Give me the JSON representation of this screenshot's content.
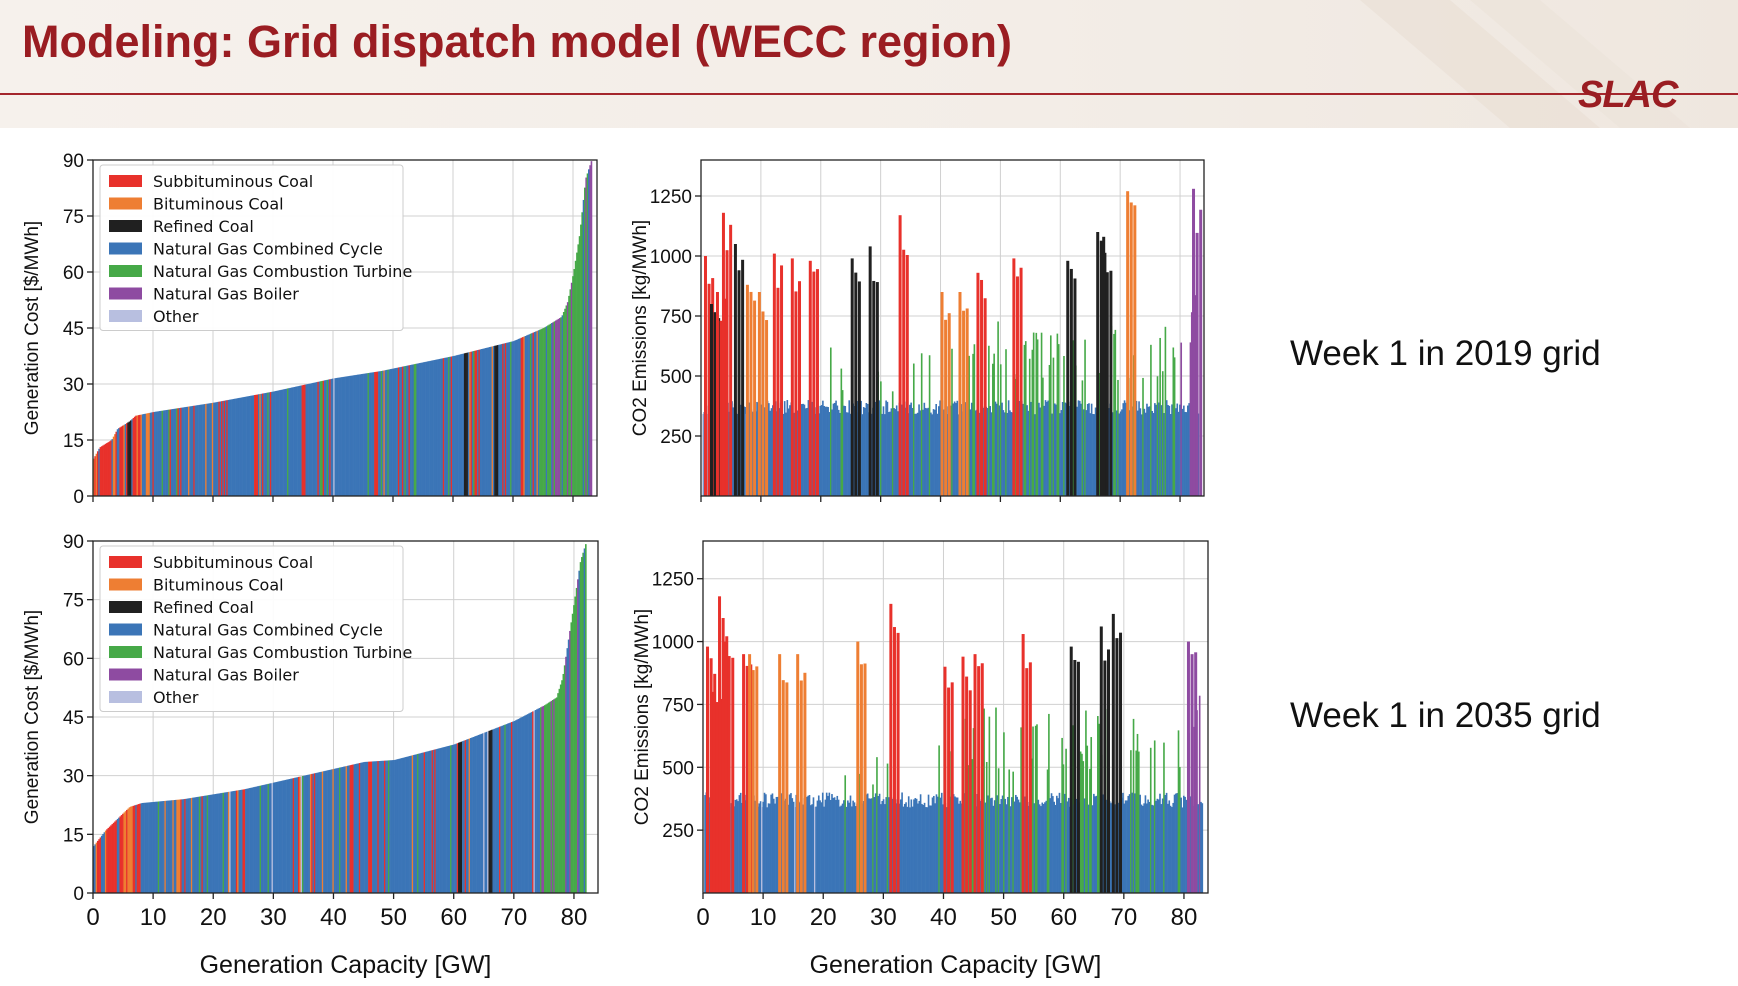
{
  "slide": {
    "title": "Modeling: Grid dispatch model (WECC region)",
    "logo_text": "SLAC",
    "accent_color": "#9a1d22"
  },
  "labels": {
    "week_2019": "Week 1 in 2019 grid",
    "week_2035": "Week 1 in 2035 grid"
  },
  "colors": {
    "Subbituminous Coal": "#e8312b",
    "Bituminous Coal": "#ee7e33",
    "Refined Coal": "#202020",
    "Natural Gas Combined Cycle": "#3b75b7",
    "Natural Gas Combustion Turbine": "#46a948",
    "Natural Gas Boiler": "#8e4ba1",
    "Other": "#b8bfe0"
  },
  "chart_data": [
    {
      "id": "cost-2019",
      "type": "bar",
      "subtype": "supply-curve",
      "title": "",
      "xlabel": "",
      "ylabel": "Generation Cost [$/MWh]",
      "xlim": [
        0,
        84
      ],
      "ylim": [
        0,
        90
      ],
      "yticks": [
        0,
        15,
        30,
        45,
        60,
        75,
        90
      ],
      "xticks": [
        0,
        10,
        20,
        30,
        40,
        50,
        60,
        70,
        80
      ],
      "show_xtick_labels": false,
      "grid": true,
      "legend": {
        "placement": "top-left",
        "entries": [
          "Subbituminous Coal",
          "Bituminous Coal",
          "Refined Coal",
          "Natural Gas Combined Cycle",
          "Natural Gas Combustion Turbine",
          "Natural Gas Boiler",
          "Other"
        ]
      },
      "curve_points": [
        [
          0,
          10
        ],
        [
          1,
          13
        ],
        [
          3,
          15
        ],
        [
          4,
          18
        ],
        [
          6,
          20
        ],
        [
          7,
          21.5
        ],
        [
          10,
          22.5
        ],
        [
          20,
          25
        ],
        [
          30,
          28
        ],
        [
          40,
          31.5
        ],
        [
          48,
          33.5
        ],
        [
          60,
          37.5
        ],
        [
          70,
          41.5
        ],
        [
          75,
          45
        ],
        [
          78,
          48
        ],
        [
          79,
          52
        ],
        [
          80,
          60
        ],
        [
          81,
          70
        ],
        [
          82,
          85
        ],
        [
          83,
          90
        ]
      ],
      "notable_units": [
        {
          "x": 2.5,
          "fuel": "Subbituminous Coal"
        },
        {
          "x": 6,
          "fuel": "Refined Coal"
        },
        {
          "x": 9,
          "fuel": "Bituminous Coal"
        },
        {
          "x": 27,
          "fuel": "Subbituminous Coal"
        },
        {
          "x": 35,
          "fuel": "Subbituminous Coal"
        },
        {
          "x": 47,
          "fuel": "Subbituminous Coal"
        },
        {
          "x": 62,
          "fuel": "Refined Coal"
        },
        {
          "x": 67,
          "fuel": "Refined Coal"
        }
      ]
    },
    {
      "id": "co2-2019",
      "type": "bar",
      "title": "",
      "xlabel": "",
      "ylabel": "CO2 Emissions [kg/MWh]",
      "xlim": [
        0,
        84
      ],
      "ylim": [
        0,
        1400
      ],
      "yticks": [
        250,
        500,
        750,
        1000,
        1250
      ],
      "xticks": [
        0,
        10,
        20,
        30,
        40,
        50,
        60,
        70,
        80
      ],
      "show_xtick_labels": false,
      "grid": true,
      "baseline_ngcc": 380,
      "notable_units": [
        {
          "x": 0.5,
          "value": 1000,
          "fuel": "Subbituminous Coal"
        },
        {
          "x": 1.5,
          "value": 800,
          "fuel": "Refined Coal"
        },
        {
          "x": 2.5,
          "value": 850,
          "fuel": "Subbituminous Coal"
        },
        {
          "x": 3.5,
          "value": 1180,
          "fuel": "Subbituminous Coal"
        },
        {
          "x": 5.5,
          "value": 1050,
          "fuel": "Refined Coal"
        },
        {
          "x": 7.5,
          "value": 880,
          "fuel": "Bituminous Coal"
        },
        {
          "x": 9.5,
          "value": 850,
          "fuel": "Bituminous Coal"
        },
        {
          "x": 12,
          "value": 1010,
          "fuel": "Subbituminous Coal"
        },
        {
          "x": 15,
          "value": 990,
          "fuel": "Subbituminous Coal"
        },
        {
          "x": 18,
          "value": 980,
          "fuel": "Subbituminous Coal"
        },
        {
          "x": 25,
          "value": 990,
          "fuel": "Refined Coal"
        },
        {
          "x": 28,
          "value": 1040,
          "fuel": "Refined Coal"
        },
        {
          "x": 33,
          "value": 1170,
          "fuel": "Subbituminous Coal"
        },
        {
          "x": 40,
          "value": 850,
          "fuel": "Bituminous Coal"
        },
        {
          "x": 43,
          "value": 850,
          "fuel": "Bituminous Coal"
        },
        {
          "x": 46,
          "value": 930,
          "fuel": "Subbituminous Coal"
        },
        {
          "x": 52,
          "value": 990,
          "fuel": "Subbituminous Coal"
        },
        {
          "x": 61,
          "value": 980,
          "fuel": "Refined Coal"
        },
        {
          "x": 66,
          "value": 1100,
          "fuel": "Refined Coal"
        },
        {
          "x": 67,
          "value": 1080,
          "fuel": "Refined Coal"
        },
        {
          "x": 71,
          "value": 1270,
          "fuel": "Bituminous Coal"
        },
        {
          "x": 82,
          "value": 1280,
          "fuel": "Natural Gas Boiler"
        }
      ]
    },
    {
      "id": "cost-2035",
      "type": "bar",
      "subtype": "supply-curve",
      "title": "",
      "xlabel": "Generation Capacity [GW]",
      "ylabel": "Generation Cost [$/MWh]",
      "xlim": [
        0,
        84
      ],
      "ylim": [
        0,
        90
      ],
      "yticks": [
        0,
        15,
        30,
        45,
        60,
        75,
        90
      ],
      "xticks": [
        0,
        10,
        20,
        30,
        40,
        50,
        60,
        70,
        80
      ],
      "show_xtick_labels": true,
      "grid": true,
      "legend": {
        "placement": "top-left",
        "entries": [
          "Subbituminous Coal",
          "Bituminous Coal",
          "Refined Coal",
          "Natural Gas Combined Cycle",
          "Natural Gas Combustion Turbine",
          "Natural Gas Boiler",
          "Other"
        ]
      },
      "curve_points": [
        [
          0,
          12
        ],
        [
          1,
          14
        ],
        [
          2,
          16
        ],
        [
          4,
          19
        ],
        [
          6,
          22
        ],
        [
          8,
          23
        ],
        [
          15,
          24
        ],
        [
          25,
          26.5
        ],
        [
          35,
          30
        ],
        [
          45,
          33.5
        ],
        [
          50,
          34
        ],
        [
          60,
          38
        ],
        [
          65,
          41
        ],
        [
          70,
          44
        ],
        [
          75,
          48
        ],
        [
          77,
          50
        ],
        [
          78,
          55
        ],
        [
          79,
          65
        ],
        [
          80,
          75
        ],
        [
          81,
          85
        ],
        [
          82,
          90
        ]
      ],
      "notable_units": [
        {
          "x": 2.5,
          "fuel": "Subbituminous Coal"
        },
        {
          "x": 6,
          "fuel": "Bituminous Coal"
        },
        {
          "x": 14,
          "fuel": "Bituminous Coal"
        },
        {
          "x": 43,
          "fuel": "Subbituminous Coal"
        },
        {
          "x": 46,
          "fuel": "Subbituminous Coal"
        },
        {
          "x": 61,
          "fuel": "Refined Coal"
        },
        {
          "x": 66,
          "fuel": "Refined Coal"
        }
      ]
    },
    {
      "id": "co2-2035",
      "type": "bar",
      "title": "",
      "xlabel": "Generation Capacity [GW]",
      "ylabel": "CO2 Emissions [kg/MWh]",
      "xlim": [
        0,
        84
      ],
      "ylim": [
        0,
        1400
      ],
      "yticks": [
        250,
        500,
        750,
        1000,
        1250
      ],
      "xticks": [
        0,
        10,
        20,
        30,
        40,
        50,
        60,
        70,
        80
      ],
      "show_xtick_labels": true,
      "grid": true,
      "baseline_ngcc": 380,
      "notable_units": [
        {
          "x": 0.5,
          "value": 980,
          "fuel": "Subbituminous Coal"
        },
        {
          "x": 1.5,
          "value": 800,
          "fuel": "Subbituminous Coal"
        },
        {
          "x": 2.5,
          "value": 1180,
          "fuel": "Subbituminous Coal"
        },
        {
          "x": 3.5,
          "value": 1000,
          "fuel": "Subbituminous Coal"
        },
        {
          "x": 6.5,
          "value": 950,
          "fuel": "Subbituminous Coal"
        },
        {
          "x": 7.5,
          "value": 950,
          "fuel": "Bituminous Coal"
        },
        {
          "x": 12.5,
          "value": 950,
          "fuel": "Bituminous Coal"
        },
        {
          "x": 15.5,
          "value": 950,
          "fuel": "Bituminous Coal"
        },
        {
          "x": 25.5,
          "value": 1000,
          "fuel": "Bituminous Coal"
        },
        {
          "x": 31,
          "value": 1150,
          "fuel": "Subbituminous Coal"
        },
        {
          "x": 40,
          "value": 900,
          "fuel": "Subbituminous Coal"
        },
        {
          "x": 43,
          "value": 940,
          "fuel": "Subbituminous Coal"
        },
        {
          "x": 45,
          "value": 950,
          "fuel": "Subbituminous Coal"
        },
        {
          "x": 53,
          "value": 1030,
          "fuel": "Subbituminous Coal"
        },
        {
          "x": 61,
          "value": 980,
          "fuel": "Refined Coal"
        },
        {
          "x": 66,
          "value": 1060,
          "fuel": "Refined Coal"
        },
        {
          "x": 68,
          "value": 1110,
          "fuel": "Refined Coal"
        },
        {
          "x": 80.5,
          "value": 1000,
          "fuel": "Natural Gas Boiler"
        }
      ]
    }
  ]
}
